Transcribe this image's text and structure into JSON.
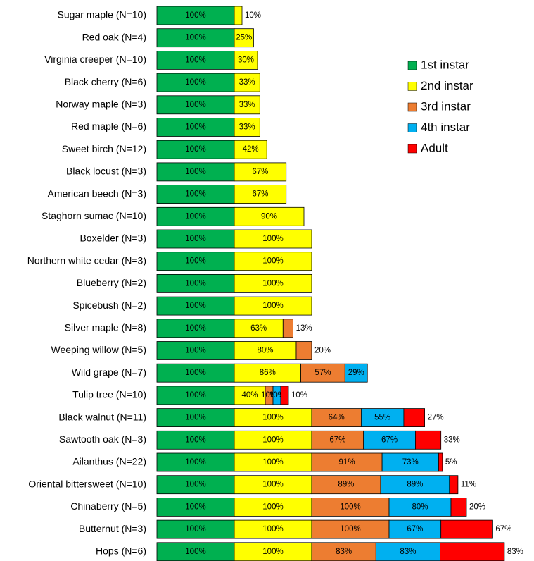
{
  "chart_data": {
    "type": "stacked-bar-horizontal",
    "categories": [
      "Sugar maple (N=10)",
      "Red oak (N=4)",
      "Virginia creeper (N=10)",
      "Black cherry (N=6)",
      "Norway maple (N=3)",
      "Red maple (N=6)",
      "Sweet birch (N=12)",
      "Black locust (N=3)",
      "American beech (N=3)",
      "Staghorn sumac (N=10)",
      "Boxelder (N=3)",
      "Northern white cedar (N=3)",
      "Blueberry (N=2)",
      "Spicebush (N=2)",
      "Silver maple (N=8)",
      "Weeping willow (N=5)",
      "Wild grape (N=7)",
      "Tulip tree (N=10)",
      "Black walnut (N=11)",
      "Sawtooth oak (N=3)",
      "Ailanthus (N=22)",
      "Oriental bittersweet (N=10)",
      "Chinaberry (N=5)",
      "Butternut (N=3)",
      "Hops (N=6)"
    ],
    "series": [
      {
        "name": "1st instar",
        "color": "#00b050",
        "values": [
          100,
          100,
          100,
          100,
          100,
          100,
          100,
          100,
          100,
          100,
          100,
          100,
          100,
          100,
          100,
          100,
          100,
          100,
          100,
          100,
          100,
          100,
          100,
          100,
          100
        ],
        "value_labels": [
          "100%",
          "100%",
          "100%",
          "100%",
          "100%",
          "100%",
          "100%",
          "100%",
          "100%",
          "100%",
          "100%",
          "100%",
          "100%",
          "100%",
          "100%",
          "100%",
          "100%",
          "100%",
          "100%",
          "100%",
          "100%",
          "100%",
          "100%",
          "100%",
          "100%"
        ]
      },
      {
        "name": "2nd instar",
        "color": "#ffff00",
        "values": [
          10,
          25,
          30,
          33,
          33,
          33,
          42,
          67,
          67,
          90,
          100,
          100,
          100,
          100,
          63,
          80,
          86,
          40,
          100,
          100,
          100,
          100,
          100,
          100,
          100
        ],
        "value_labels": [
          "10%",
          "25%",
          "30%",
          "33%",
          "33%",
          "33%",
          "42%",
          "67%",
          "67%",
          "90%",
          "100%",
          "100%",
          "100%",
          "100%",
          "63%",
          "80%",
          "86%",
          "40%",
          "100%",
          "100%",
          "100%",
          "100%",
          "100%",
          "100%",
          "100%"
        ]
      },
      {
        "name": "3rd instar",
        "color": "#ed7d31",
        "values": [
          null,
          null,
          null,
          null,
          null,
          null,
          null,
          null,
          null,
          null,
          null,
          null,
          null,
          null,
          13,
          20,
          57,
          10,
          64,
          67,
          91,
          89,
          100,
          100,
          83
        ],
        "value_labels": [
          null,
          null,
          null,
          null,
          null,
          null,
          null,
          null,
          null,
          null,
          null,
          null,
          null,
          null,
          "13%",
          "20%",
          "57%",
          "10%",
          "64%",
          "67%",
          "91%",
          "89%",
          "100%",
          "100%",
          "83%"
        ]
      },
      {
        "name": "4th instar",
        "color": "#00b0f0",
        "values": [
          null,
          null,
          null,
          null,
          null,
          null,
          null,
          null,
          null,
          null,
          null,
          null,
          null,
          null,
          null,
          null,
          29,
          10,
          55,
          67,
          73,
          89,
          80,
          67,
          83
        ],
        "value_labels": [
          null,
          null,
          null,
          null,
          null,
          null,
          null,
          null,
          null,
          null,
          null,
          null,
          null,
          null,
          null,
          null,
          "29%",
          "10%",
          "55%",
          "67%",
          "73%",
          "89%",
          "80%",
          "67%",
          "83%"
        ]
      },
      {
        "name": "Adult",
        "color": "#ff0000",
        "values": [
          null,
          null,
          null,
          null,
          null,
          null,
          null,
          null,
          null,
          null,
          null,
          null,
          null,
          null,
          null,
          null,
          null,
          10,
          27,
          33,
          5,
          11,
          20,
          67,
          83
        ],
        "value_labels": [
          null,
          null,
          null,
          null,
          null,
          null,
          null,
          null,
          null,
          null,
          null,
          null,
          null,
          null,
          null,
          null,
          null,
          "10%",
          "27%",
          "33%",
          "5%",
          "11%",
          "20%",
          "67%",
          "83%"
        ]
      }
    ],
    "legend": "right"
  }
}
